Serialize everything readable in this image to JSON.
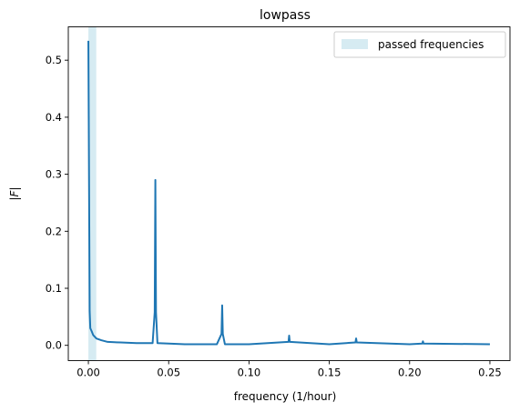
{
  "chart_data": {
    "type": "line",
    "title": "lowpass",
    "xlabel": "frequency (1/hour)",
    "ylabel": "|F|",
    "xlim": [
      -0.0125,
      0.2625
    ],
    "ylim": [
      -0.0268,
      0.5585
    ],
    "xticks": [
      0.0,
      0.05,
      0.1,
      0.15,
      0.2,
      0.25
    ],
    "xtick_labels": [
      "0.00",
      "0.05",
      "0.10",
      "0.15",
      "0.20",
      "0.25"
    ],
    "yticks": [
      0.0,
      0.1,
      0.2,
      0.3,
      0.4,
      0.5
    ],
    "ytick_labels": [
      "0.0",
      "0.1",
      "0.2",
      "0.3",
      "0.4",
      "0.5"
    ],
    "grid": false,
    "legend_position": "top-right",
    "passband": {
      "label": "passed frequencies",
      "x_range": [
        0.0,
        0.0049
      ],
      "color": "#add8e6"
    },
    "series": [
      {
        "color": "#1f77b4",
        "x": [
          0.0,
          0.0008,
          0.0012,
          0.002,
          0.003,
          0.005,
          0.008,
          0.012,
          0.02,
          0.03,
          0.04,
          0.0413,
          0.0417,
          0.0421,
          0.043,
          0.05,
          0.06,
          0.08,
          0.0829,
          0.0833,
          0.0837,
          0.085,
          0.1,
          0.1246,
          0.125,
          0.1254,
          0.15,
          0.1663,
          0.1667,
          0.1671,
          0.2,
          0.2079,
          0.2083,
          0.2087,
          0.25
        ],
        "y": [
          0.534,
          0.06,
          0.03,
          0.025,
          0.018,
          0.012,
          0.009,
          0.006,
          0.005,
          0.004,
          0.004,
          0.058,
          0.29,
          0.058,
          0.004,
          0.003,
          0.002,
          0.002,
          0.02,
          0.07,
          0.02,
          0.002,
          0.002,
          0.006,
          0.017,
          0.006,
          0.002,
          0.005,
          0.012,
          0.005,
          0.002,
          0.003,
          0.007,
          0.003,
          0.002
        ]
      }
    ]
  }
}
